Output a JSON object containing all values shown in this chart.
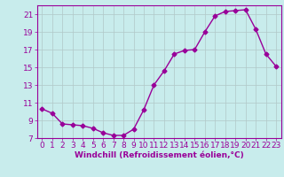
{
  "x": [
    0,
    1,
    2,
    3,
    4,
    5,
    6,
    7,
    8,
    9,
    10,
    11,
    12,
    13,
    14,
    15,
    16,
    17,
    18,
    19,
    20,
    21,
    22,
    23
  ],
  "y": [
    10.3,
    9.8,
    8.6,
    8.5,
    8.4,
    8.1,
    7.6,
    7.3,
    7.3,
    8.0,
    10.2,
    13.0,
    14.6,
    16.5,
    16.9,
    17.0,
    19.0,
    20.8,
    21.3,
    21.4,
    21.5,
    19.3,
    16.5,
    15.1
  ],
  "xlim": [
    -0.5,
    23.5
  ],
  "ylim": [
    7,
    22
  ],
  "yticks": [
    7,
    9,
    11,
    13,
    15,
    17,
    19,
    21
  ],
  "xticks": [
    0,
    1,
    2,
    3,
    4,
    5,
    6,
    7,
    8,
    9,
    10,
    11,
    12,
    13,
    14,
    15,
    16,
    17,
    18,
    19,
    20,
    21,
    22,
    23
  ],
  "xlabel": "Windchill (Refroidissement éolien,°C)",
  "line_color": "#990099",
  "marker": "D",
  "marker_size": 2.5,
  "bg_color": "#c8ecec",
  "grid_color": "#b0c8c8",
  "font_color": "#990099",
  "tick_label_size": 6.5,
  "xlabel_size": 6.5
}
